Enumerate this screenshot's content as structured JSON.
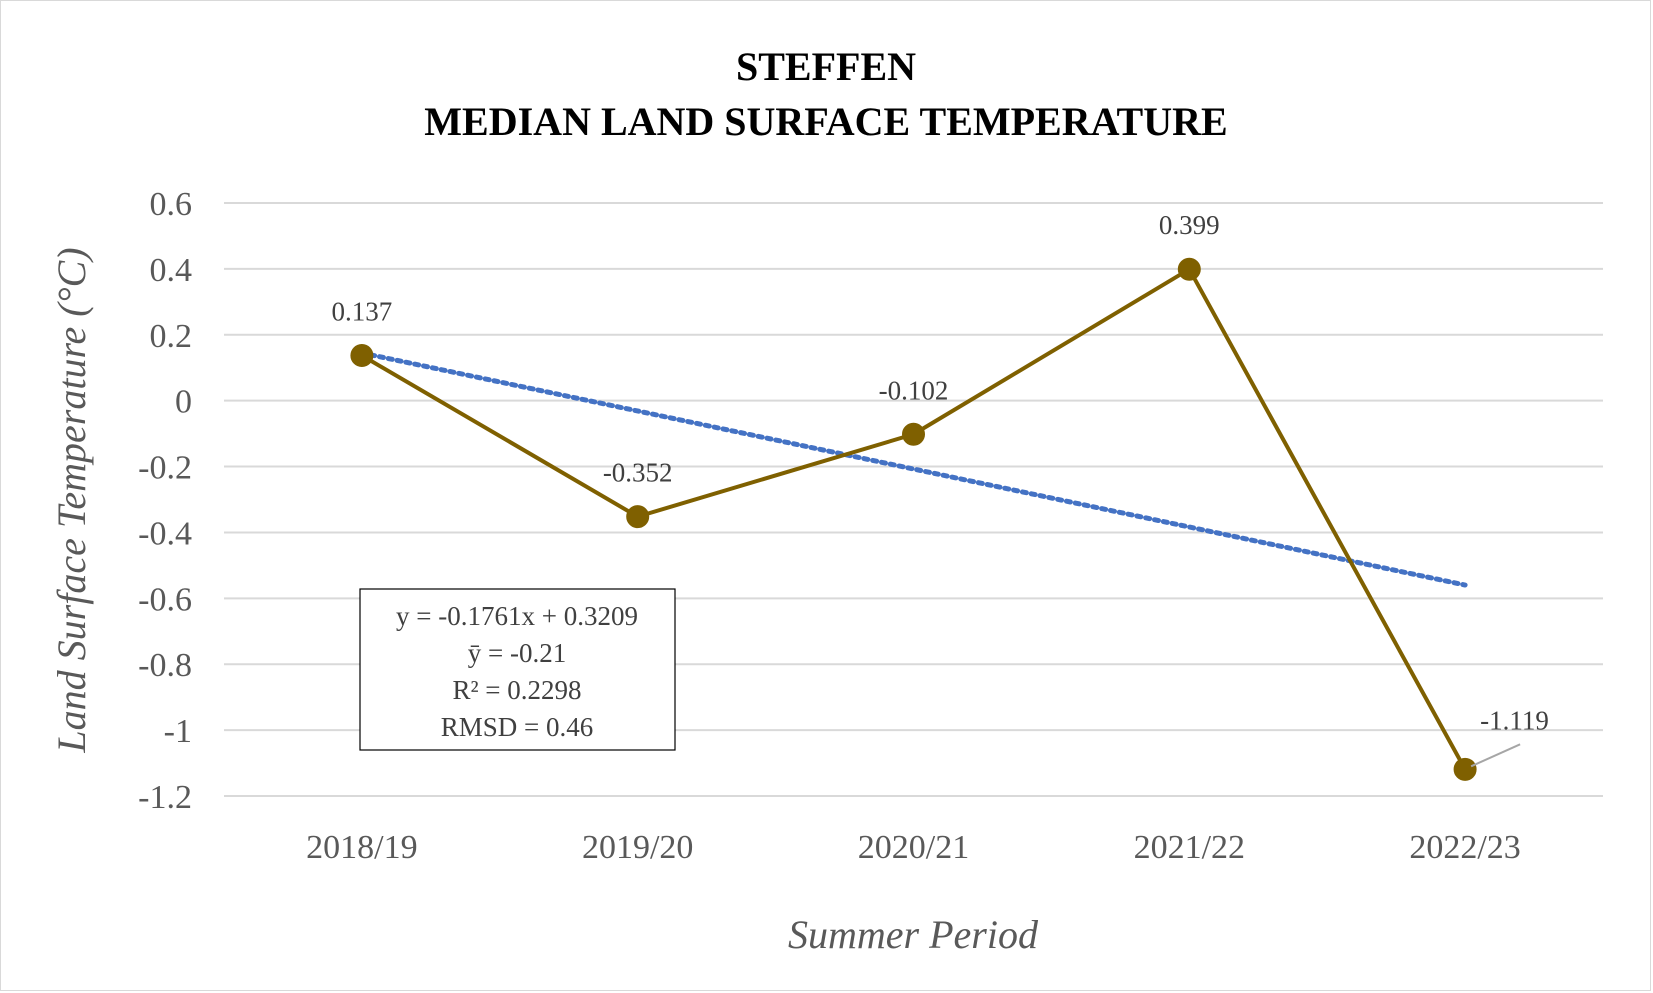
{
  "chart_data": {
    "type": "line",
    "title_lines": [
      "STEFFEN",
      "MEDIAN LAND SURFACE TEMPERATURE"
    ],
    "xlabel": "Summer Period",
    "ylabel": "Land Surface Temperature (°C)",
    "categories": [
      "2018/19",
      "2019/20",
      "2020/21",
      "2021/22",
      "2022/23"
    ],
    "series": [
      {
        "values": [
          0.137,
          -0.352,
          -0.102,
          0.399,
          -1.119
        ],
        "color": "#7f6000"
      }
    ],
    "data_labels": [
      "0.137",
      "-0.352",
      "-0.102",
      "0.399",
      "-1.119"
    ],
    "trendline": {
      "type": "linear",
      "slope": -0.1761,
      "intercept": 0.3209,
      "color": "#4472c4",
      "style": "dotted"
    },
    "ylim": [
      -1.2,
      0.6
    ],
    "yticks": [
      "0.6",
      "0.4",
      "0.2",
      "0",
      "-0.2",
      "-0.4",
      "-0.6",
      "-0.8",
      "-1",
      "-1.2"
    ],
    "grid": true,
    "stats_box": [
      "y = -0.1761x + 0.3209",
      "ȳ = -0.21",
      "R² = 0.2298",
      "RMSD = 0.46"
    ]
  }
}
